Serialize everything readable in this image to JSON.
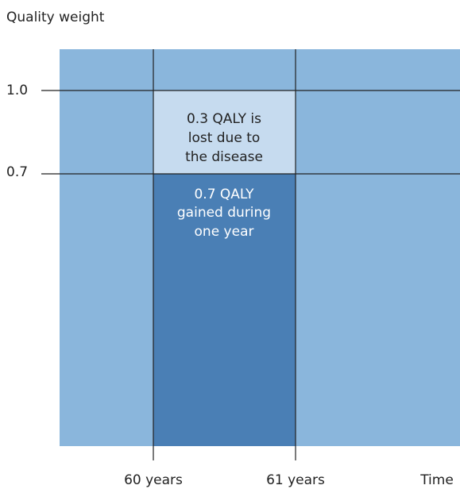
{
  "y_axis_label": "Quality weight",
  "y_ticks": [
    "1.0",
    "0.7"
  ],
  "x_labels": [
    "60 years",
    "61 years",
    "Time"
  ],
  "boxes": [
    {
      "lines": [
        "0.3 QALY is",
        "lost due to",
        "the disease"
      ]
    },
    {
      "lines": [
        "0.7 QALY",
        "gained during",
        "one year"
      ]
    }
  ]
}
